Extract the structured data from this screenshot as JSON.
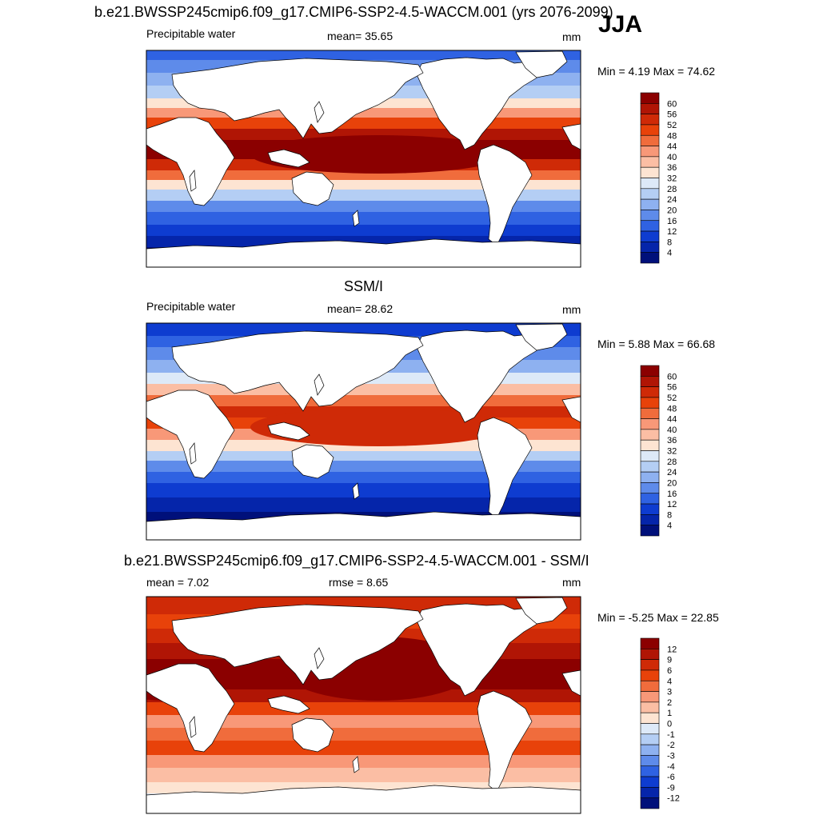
{
  "season_label": "JJA",
  "panels": [
    {
      "title": "b.e21.BWSSP245cmip6.f09_g17.CMIP6-SSP2-4.5-WACCM.001 (yrs 2076-2099)",
      "left_label": "Precipitable water",
      "center_label": "mean=  35.65",
      "units": "mm",
      "minmax": "Min =   4.19 Max =  74.62",
      "colorbar": {
        "ticks": [
          "60",
          "56",
          "52",
          "48",
          "44",
          "40",
          "36",
          "32",
          "28",
          "24",
          "20",
          "16",
          "12",
          "8",
          "4"
        ],
        "colors": [
          "#8b0000",
          "#b01505",
          "#cf2a07",
          "#e8420a",
          "#f06c3c",
          "#f89878",
          "#fbbea4",
          "#fde4d2",
          "#dde9f8",
          "#b4cef4",
          "#8eb1f0",
          "#5e8bea",
          "#2f62e2",
          "#0e3cd0",
          "#0525aa",
          "#00107a"
        ]
      },
      "fill_scheme": "model"
    },
    {
      "title": "SSM/I",
      "left_label": "Precipitable water",
      "center_label": "mean=  28.62",
      "units": "mm",
      "minmax": "Min =   5.88 Max =  66.68",
      "colorbar": {
        "ticks": [
          "60",
          "56",
          "52",
          "48",
          "44",
          "40",
          "36",
          "32",
          "28",
          "24",
          "20",
          "16",
          "12",
          "8",
          "4"
        ],
        "colors": [
          "#8b0000",
          "#b01505",
          "#cf2a07",
          "#e8420a",
          "#f06c3c",
          "#f89878",
          "#fbbea4",
          "#fde4d2",
          "#dde9f8",
          "#b4cef4",
          "#8eb1f0",
          "#5e8bea",
          "#2f62e2",
          "#0e3cd0",
          "#0525aa",
          "#00107a"
        ]
      },
      "fill_scheme": "obs"
    },
    {
      "title": "b.e21.BWSSP245cmip6.f09_g17.CMIP6-SSP2-4.5-WACCM.001 - SSM/I",
      "left_label": "mean =   7.02",
      "center_label": "rmse =   8.65",
      "units": "mm",
      "minmax": "Min =  -5.25 Max =  22.85",
      "colorbar": {
        "ticks": [
          "12",
          "9",
          "6",
          "4",
          "3",
          "2",
          "1",
          "0",
          "-1",
          "-2",
          "-3",
          "-4",
          "-6",
          "-9",
          "-12"
        ],
        "colors": [
          "#8b0000",
          "#b01505",
          "#cf2a07",
          "#e8420a",
          "#f06c3c",
          "#f89878",
          "#fbbea4",
          "#fde4d2",
          "#dde9f8",
          "#b4cef4",
          "#8eb1f0",
          "#5e8bea",
          "#2f62e2",
          "#0e3cd0",
          "#0525aa",
          "#00107a"
        ]
      },
      "fill_scheme": "diff"
    }
  ]
}
